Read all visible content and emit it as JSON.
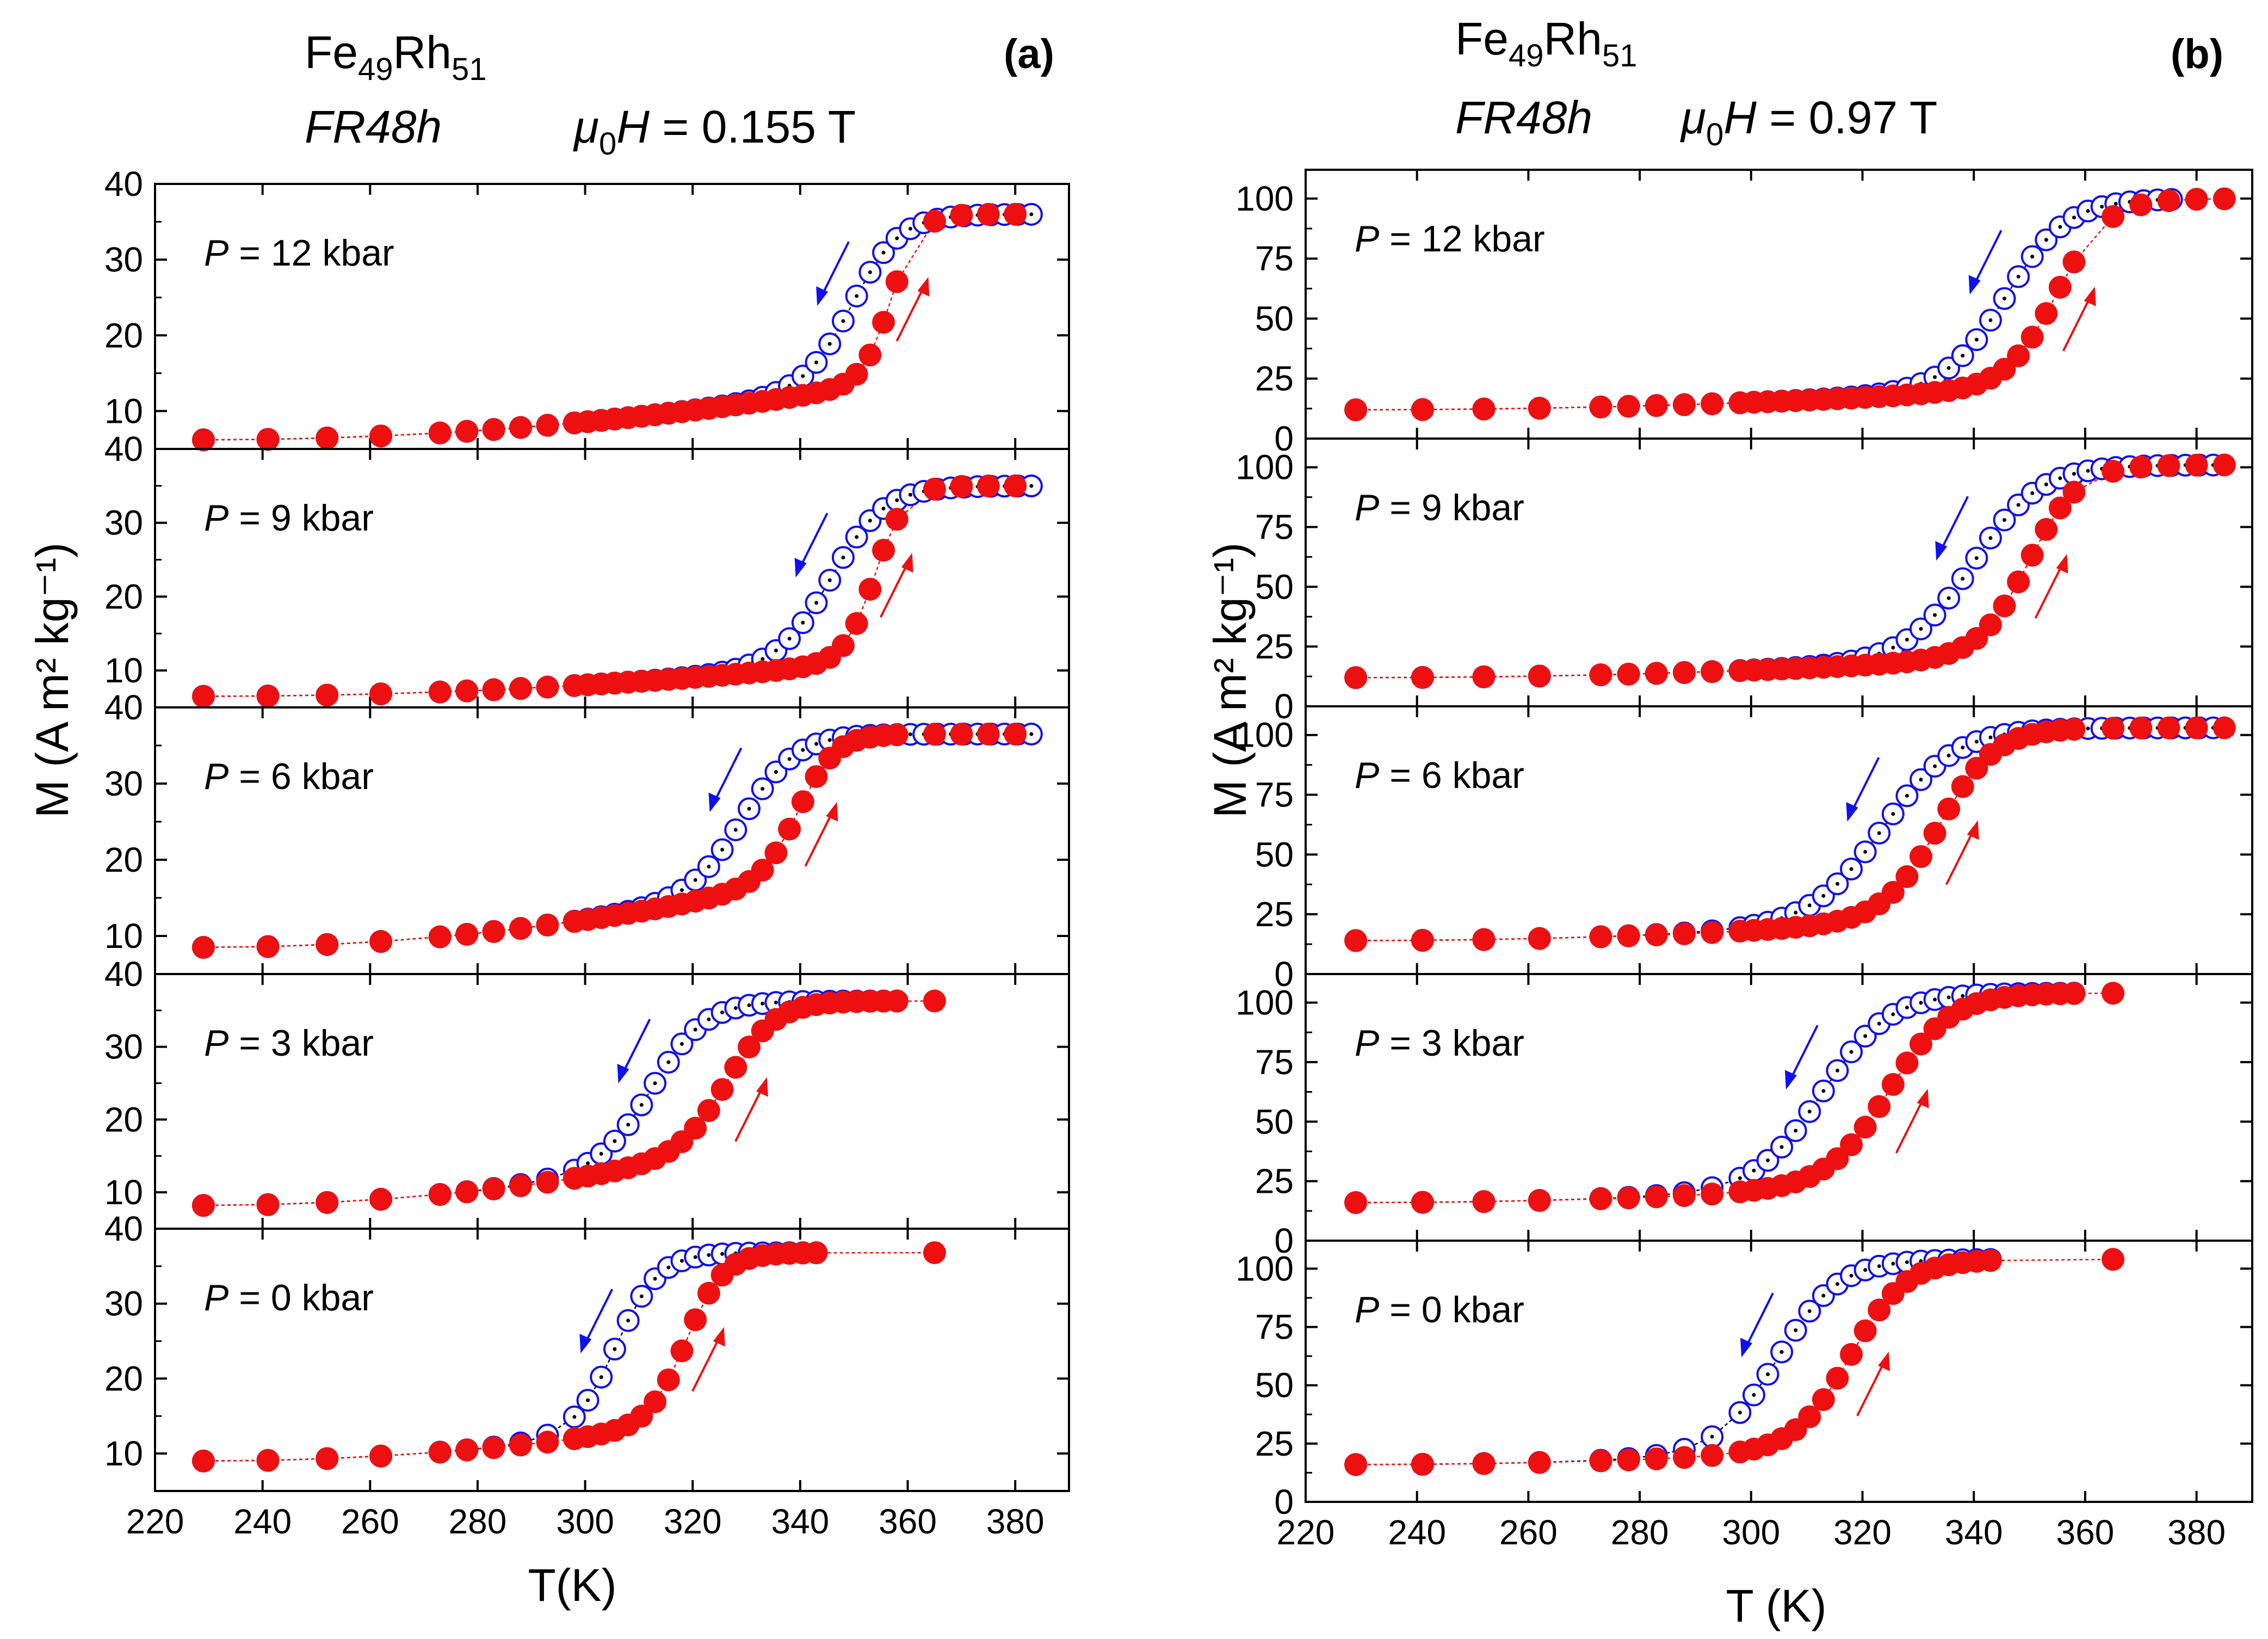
{
  "figure": {
    "colors": {
      "cooling": "#1010ee",
      "heating": "#ee1010",
      "connector": "#000000"
    }
  },
  "chart_data": [
    {
      "type": "scatter",
      "panel_label": "(a)",
      "header": {
        "compound": "Fe",
        "sub1": "49",
        "compound2": "Rh",
        "sub2": "51",
        "sample": "FR48h",
        "field_prefix": "μ",
        "field_sub": "0",
        "field_var": "H",
        "field_value": " = 0.155 T"
      },
      "xlabel": "T(K)",
      "ylabel": "M (A m² kg⁻¹)",
      "xlim": [
        220,
        390
      ],
      "x_ticks": [
        220,
        240,
        260,
        280,
        300,
        320,
        340,
        360,
        380
      ],
      "x_tick_labels": [
        "220",
        "240",
        "260",
        "280",
        "300",
        "320",
        "340",
        "360",
        "380"
      ],
      "subplots": [
        {
          "label": "= 12 kbar",
          "ylim": [
            5,
            40
          ],
          "yticks": [
            10,
            20,
            30,
            40
          ],
          "ytick_labels": [
            "10",
            "20",
            "30",
            "40"
          ],
          "x1": 229,
          "x2": 385,
          "y0": 6.2,
          "y1": 8.5,
          "y2": 36,
          "Tc": 350,
          "wc": 4.5,
          "Th": 357,
          "wh": 2.6,
          "fmax": 384,
          "series": [
            {
              "name": "cooling"
            },
            {
              "name": "heating"
            }
          ]
        },
        {
          "label": "= 9 kbar",
          "ylim": [
            5,
            40
          ],
          "yticks": [
            10,
            20,
            30,
            40
          ],
          "ytick_labels": [
            "10",
            "20",
            "30",
            "40"
          ],
          "x1": 229,
          "x2": 385,
          "y0": 6.5,
          "y1": 8.0,
          "y2": 35,
          "Tc": 346,
          "wc": 5.0,
          "Th": 354,
          "wh": 2.8,
          "fmax": 384,
          "series": [
            {
              "name": "cooling"
            },
            {
              "name": "heating"
            }
          ]
        },
        {
          "label": "= 6 kbar",
          "ylim": [
            5,
            40
          ],
          "yticks": [
            10,
            20,
            30,
            40
          ],
          "ytick_labels": [
            "10",
            "20",
            "30",
            "40"
          ],
          "x1": 229,
          "x2": 385,
          "y0": 8.5,
          "y1": 12.0,
          "y2": 36.5,
          "Tc": 330,
          "wc": 5.0,
          "Th": 340,
          "wh": 3.5,
          "fmax": 384,
          "series": [
            {
              "name": "cooling"
            },
            {
              "name": "heating"
            }
          ]
        },
        {
          "label": "= 3 kbar",
          "ylim": [
            5,
            40
          ],
          "yticks": [
            10,
            20,
            30,
            40
          ],
          "ytick_labels": [
            "10",
            "20",
            "30",
            "40"
          ],
          "x1": 229,
          "x2": 360,
          "y0": 8.2,
          "y1": 12.0,
          "y2": 36.3,
          "Tc": 313,
          "wc": 5.0,
          "Th": 327,
          "wh": 4.5,
          "fmax": 365,
          "series": [
            {
              "name": "cooling"
            },
            {
              "name": "heating"
            }
          ]
        },
        {
          "label": "= 0 kbar",
          "ylim": [
            5,
            40
          ],
          "yticks": [
            10,
            20,
            30,
            40
          ],
          "ytick_labels": [
            "10",
            "20",
            "30",
            "40"
          ],
          "x1": 229,
          "x2": 345,
          "y0": 9.0,
          "y1": 12.0,
          "y2": 36.8,
          "Tc": 306,
          "wc": 4.0,
          "Th": 319,
          "wh": 3.5,
          "fmax": 365,
          "series": [
            {
              "name": "cooling"
            },
            {
              "name": "heating"
            }
          ]
        }
      ]
    },
    {
      "type": "scatter",
      "panel_label": "(b)",
      "header": {
        "compound": "Fe",
        "sub1": "49",
        "compound2": "Rh",
        "sub2": "51",
        "sample": "FR48h",
        "field_prefix": "μ",
        "field_sub": "0",
        "field_var": "H",
        "field_value": " = 0.97 T"
      },
      "xlabel": "T (K)",
      "ylabel": "M (A m² kg⁻¹)",
      "xlim": [
        220,
        390
      ],
      "x_ticks": [
        220,
        240,
        260,
        280,
        300,
        320,
        340,
        360,
        380
      ],
      "x_tick_labels": [
        "220",
        "240",
        "260",
        "280",
        "300",
        "320",
        "340",
        "360",
        "380"
      ],
      "subplots": [
        {
          "label": "= 12 kbar",
          "ylim": [
            0,
            112
          ],
          "yticks": [
            0,
            25,
            50,
            75,
            100
          ],
          "ytick_labels": [
            "0",
            "25",
            "50",
            "75",
            "100"
          ],
          "x1": 229,
          "x2": 376,
          "y0": 12,
          "y1": 15,
          "y2": 100,
          "Tc": 346,
          "wc": 5.5,
          "Th": 355,
          "wh": 4.5,
          "fmax": 385,
          "series": [
            {
              "name": "cooling"
            },
            {
              "name": "heating"
            }
          ]
        },
        {
          "label": "= 9 kbar",
          "ylim": [
            0,
            112
          ],
          "yticks": [
            0,
            25,
            50,
            75,
            100
          ],
          "ytick_labels": [
            "0",
            "25",
            "50",
            "75",
            "100"
          ],
          "x1": 229,
          "x2": 385,
          "y0": 12,
          "y1": 15,
          "y2": 101,
          "Tc": 340,
          "wc": 6.0,
          "Th": 350,
          "wh": 4.5,
          "fmax": 385,
          "series": [
            {
              "name": "cooling"
            },
            {
              "name": "heating"
            }
          ]
        },
        {
          "label": "= 6 kbar",
          "ylim": [
            0,
            112
          ],
          "yticks": [
            0,
            25,
            50,
            75,
            100
          ],
          "ytick_labels": [
            "0",
            "25",
            "50",
            "75",
            "100"
          ],
          "x1": 229,
          "x2": 385,
          "y0": 14,
          "y1": 18,
          "y2": 103,
          "Tc": 324,
          "wc": 6.5,
          "Th": 334,
          "wh": 5.0,
          "fmax": 385,
          "series": [
            {
              "name": "cooling"
            },
            {
              "name": "heating"
            }
          ]
        },
        {
          "label": "= 3 kbar",
          "ylim": [
            0,
            112
          ],
          "yticks": [
            0,
            25,
            50,
            75,
            100
          ],
          "ytick_labels": [
            "0",
            "25",
            "50",
            "75",
            "100"
          ],
          "x1": 229,
          "x2": 360,
          "y0": 16,
          "y1": 20,
          "y2": 104,
          "Tc": 313,
          "wc": 6.0,
          "Th": 325,
          "wh": 5.5,
          "fmax": 365,
          "series": [
            {
              "name": "cooling"
            },
            {
              "name": "heating"
            }
          ]
        },
        {
          "label": "= 0 kbar",
          "ylim": [
            0,
            112
          ],
          "yticks": [
            0,
            25,
            50,
            75,
            100
          ],
          "ytick_labels": [
            "0",
            "25",
            "50",
            "75",
            "100"
          ],
          "x1": 229,
          "x2": 345,
          "y0": 16,
          "y1": 20,
          "y2": 104,
          "Tc": 305,
          "wc": 5.5,
          "Th": 318,
          "wh": 5.0,
          "fmax": 365,
          "series": [
            {
              "name": "cooling"
            },
            {
              "name": "heating"
            }
          ]
        }
      ]
    }
  ]
}
